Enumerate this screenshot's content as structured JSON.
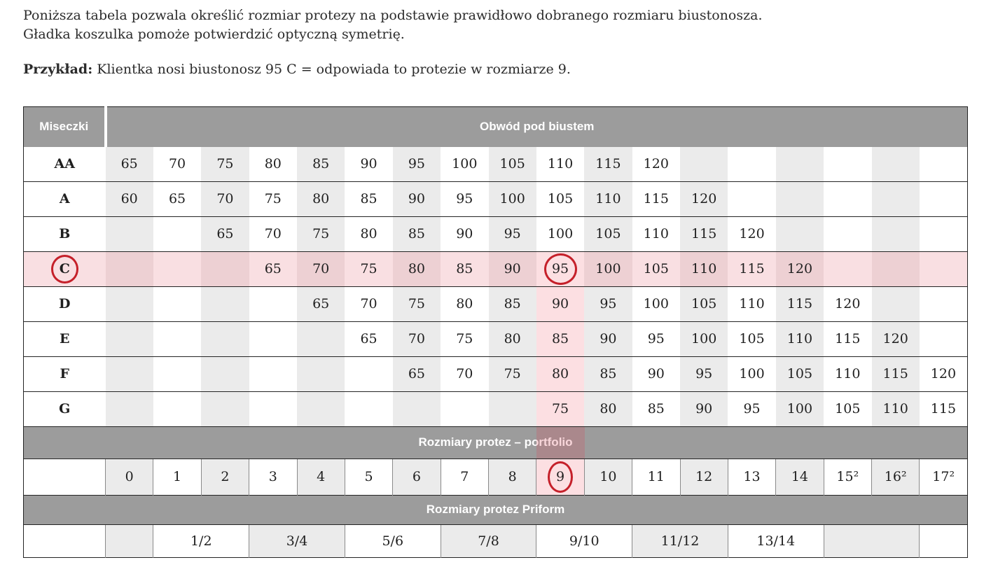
{
  "intro": {
    "line1": "Poniższa tabela pozwala określić rozmiar protezy na podstawie prawidłowo dobranego rozmiaru biustonosza.",
    "line2": "Gładka koszulka pomoże potwierdzić optyczną symetrię.",
    "example_label": "Przykład:",
    "example_text": " Klientka nosi biustonosz 95 C = odpowiada to protezie w rozmiarze 9."
  },
  "table": {
    "header": {
      "cups_label": "Miseczki",
      "band_label": "Obwód pod biustem"
    },
    "cup_rows": [
      {
        "label": "AA",
        "values": [
          "65",
          "70",
          "75",
          "80",
          "85",
          "90",
          "95",
          "100",
          "105",
          "110",
          "115",
          "120",
          "",
          "",
          "",
          "",
          "",
          ""
        ]
      },
      {
        "label": "A",
        "values": [
          "60",
          "65",
          "70",
          "75",
          "80",
          "85",
          "90",
          "95",
          "100",
          "105",
          "110",
          "115",
          "120",
          "",
          "",
          "",
          "",
          ""
        ]
      },
      {
        "label": "B",
        "values": [
          "",
          "",
          "65",
          "70",
          "75",
          "80",
          "85",
          "90",
          "95",
          "100",
          "105",
          "110",
          "115",
          "120",
          "",
          "",
          "",
          ""
        ]
      },
      {
        "label": "C",
        "values": [
          "",
          "",
          "",
          "65",
          "70",
          "75",
          "80",
          "85",
          "90",
          "95",
          "100",
          "105",
          "110",
          "115",
          "120",
          "",
          "",
          ""
        ]
      },
      {
        "label": "D",
        "values": [
          "",
          "",
          "",
          "",
          "65",
          "70",
          "75",
          "80",
          "85",
          "90",
          "95",
          "100",
          "105",
          "110",
          "115",
          "120",
          "",
          ""
        ]
      },
      {
        "label": "E",
        "values": [
          "",
          "",
          "",
          "",
          "",
          "65",
          "70",
          "75",
          "80",
          "85",
          "90",
          "95",
          "100",
          "105",
          "110",
          "115",
          "120",
          ""
        ]
      },
      {
        "label": "F",
        "values": [
          "",
          "",
          "",
          "",
          "",
          "",
          "65",
          "70",
          "75",
          "80",
          "85",
          "90",
          "95",
          "100",
          "105",
          "110",
          "115",
          "120"
        ]
      },
      {
        "label": "G",
        "values": [
          "",
          "",
          "",
          "",
          "",
          "",
          "",
          "",
          "",
          "75",
          "80",
          "85",
          "90",
          "95",
          "100",
          "105",
          "110",
          "115"
        ]
      }
    ],
    "portfolio_band_label": "Rozmiary protez – portfolio",
    "portfolio_values": [
      "0",
      "1",
      "2",
      "3",
      "4",
      "5",
      "6",
      "7",
      "8",
      "9",
      "10",
      "11",
      "12",
      "13",
      "14",
      "15²",
      "16²",
      "17²"
    ],
    "priform_band_label": "Rozmiary protez Priform",
    "priform_cells": [
      {
        "label": "",
        "span": 1,
        "shade": true
      },
      {
        "label": "1/2",
        "span": 2,
        "shade": false
      },
      {
        "label": "3/4",
        "span": 2,
        "shade": true
      },
      {
        "label": "5/6",
        "span": 2,
        "shade": false
      },
      {
        "label": "7/8",
        "span": 2,
        "shade": true
      },
      {
        "label": "9/10",
        "span": 2,
        "shade": false
      },
      {
        "label": "11/12",
        "span": 2,
        "shade": true
      },
      {
        "label": "13/14",
        "span": 2,
        "shade": false
      },
      {
        "label": "",
        "span": 2,
        "shade": true
      },
      {
        "label": "",
        "span": 1,
        "shade": false
      }
    ],
    "highlight": {
      "row_label": "C",
      "column_index": 9,
      "circled_cup": "C",
      "circled_underbust": "95",
      "circled_portfolio_size": "9"
    },
    "colors": {
      "band_gray": "#9c9c9c",
      "cell_gray": "#ebebeb",
      "row_pink_light": "#f9dfe2",
      "row_pink_dark": "#edd0d3",
      "column_pink": "#fcdfe2",
      "circle_red": "#c5202a",
      "border_dark": "#242424",
      "border_gray": "#8a8a8a"
    }
  }
}
